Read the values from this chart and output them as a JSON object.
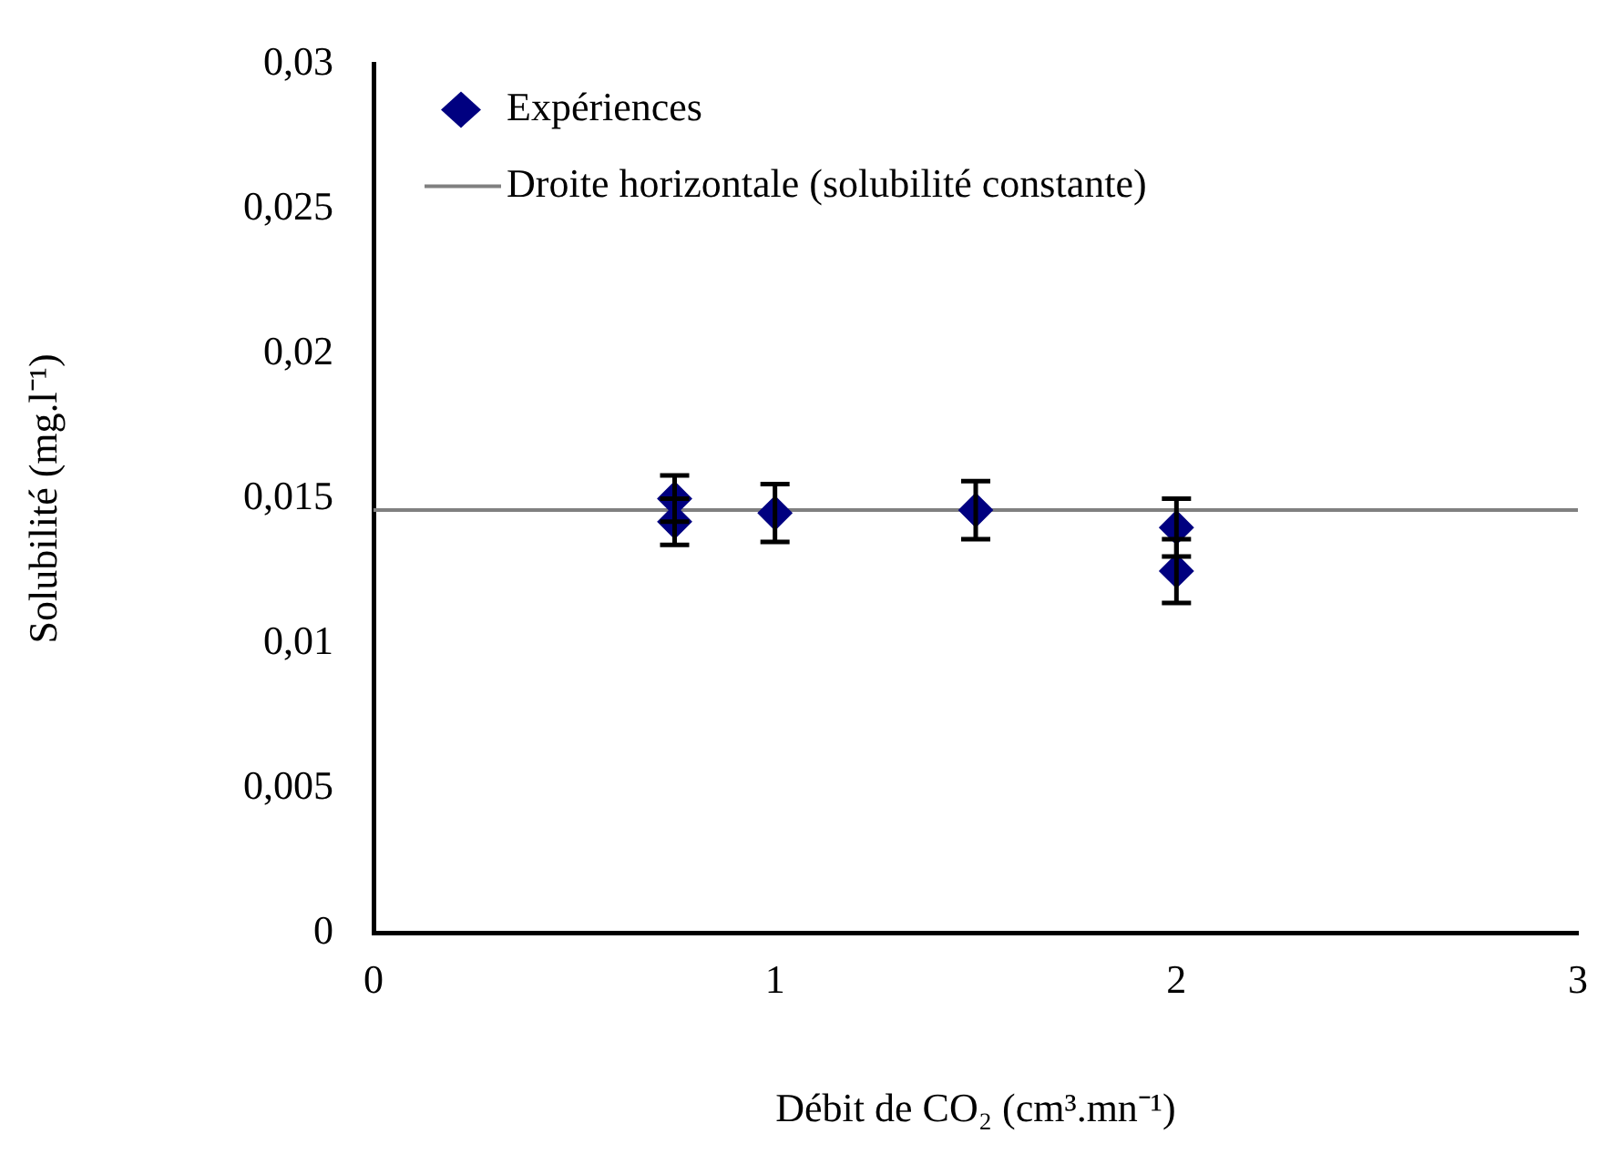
{
  "chart_data": {
    "type": "scatter",
    "xlabel": "Débit de CO₂ (cm³.mn⁻¹)",
    "ylabel": "Solubilité (mg.l⁻¹)",
    "xlim": [
      0,
      3
    ],
    "xticks": [
      0,
      1,
      2,
      3
    ],
    "ylim": [
      0,
      0.03
    ],
    "yticks": [
      {
        "value": 0,
        "label": "0"
      },
      {
        "value": 0.005,
        "label": "0,005"
      },
      {
        "value": 0.01,
        "label": "0,01"
      },
      {
        "value": 0.015,
        "label": "0,015"
      },
      {
        "value": 0.02,
        "label": "0,02"
      },
      {
        "value": 0.025,
        "label": "0,025"
      },
      {
        "value": 0.03,
        "label": "0,03"
      }
    ],
    "grid": false,
    "legend": "top left",
    "series": [
      {
        "name": "Expériences",
        "color": "#000080",
        "marker": "diamond",
        "x": [
          0.75,
          0.75,
          1,
          1.5,
          2,
          2
        ],
        "values": [
          0.015,
          0.0142,
          0.0145,
          0.0146,
          0.014,
          0.0125
        ],
        "errors": [
          0.0008,
          0.0008,
          0.001,
          0.001,
          0.001,
          0.0011
        ]
      },
      {
        "name": "Droite horizontale (solubilité constante)",
        "type": "line",
        "color": "#808080",
        "marker": "none",
        "line_style": "solid",
        "x": [
          0,
          3
        ],
        "values": [
          0.0146,
          0.0146
        ]
      }
    ]
  }
}
